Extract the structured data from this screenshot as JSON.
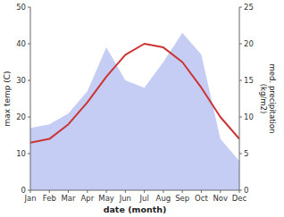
{
  "chart_data": {
    "type": "line",
    "xlabel": "date (month)",
    "ylabel": "max temp (C)",
    "y2label": "med. precipitation\n(kg/m2)",
    "categories": [
      "Jan",
      "Feb",
      "Mar",
      "Apr",
      "May",
      "Jun",
      "Jul",
      "Aug",
      "Sep",
      "Oct",
      "Nov",
      "Dec"
    ],
    "series": [
      {
        "type": "line",
        "color": "#cc3333",
        "values": [
          13,
          14,
          18,
          24,
          31,
          37,
          40,
          39,
          35,
          28,
          20,
          14
        ]
      },
      {
        "type": "area",
        "color": "#c5cdf5",
        "axis": "y2",
        "values": [
          8.5,
          9.0,
          10.5,
          13.5,
          19.5,
          15.0,
          14.0,
          17.5,
          21.5,
          18.5,
          7.0,
          4.0
        ]
      }
    ],
    "ylim": [
      0,
      50
    ],
    "yticks": [
      0,
      10,
      20,
      30,
      40,
      50
    ],
    "y2lim": [
      0,
      25
    ],
    "y2ticks": [
      0,
      5,
      10,
      15,
      20,
      25
    ],
    "grid": false
  }
}
